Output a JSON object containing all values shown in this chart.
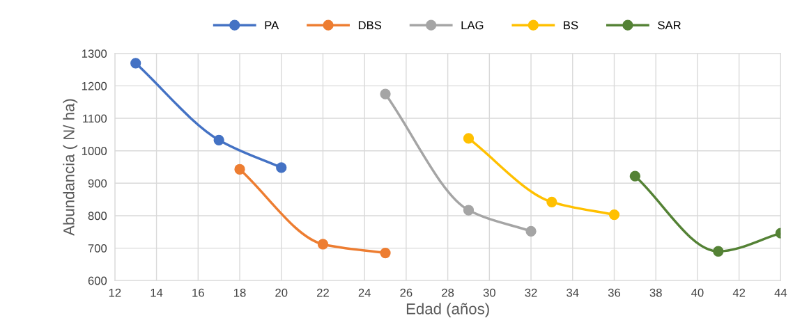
{
  "chart_data": {
    "type": "line",
    "xlabel": "Edad (años)",
    "ylabel": "Abundancia ( N/ ha)",
    "xlim": [
      12,
      44
    ],
    "xticks": [
      12,
      14,
      16,
      18,
      20,
      22,
      24,
      26,
      28,
      30,
      32,
      34,
      36,
      38,
      40,
      42,
      44
    ],
    "ylim": [
      600,
      1300
    ],
    "yticks": [
      600,
      700,
      800,
      900,
      1000,
      1100,
      1200,
      1300
    ],
    "grid": true,
    "legend": "top",
    "marker": "circle",
    "line_style": "solid",
    "series": [
      {
        "name": "PA",
        "color": "#4472c4",
        "x": [
          13,
          17,
          20
        ],
        "values": [
          1270,
          1033,
          948
        ]
      },
      {
        "name": "DBS",
        "color": "#ed7d31",
        "x": [
          18,
          22,
          25
        ],
        "values": [
          943,
          712,
          685
        ]
      },
      {
        "name": "LAG",
        "color": "#a5a5a5",
        "x": [
          25,
          29,
          32
        ],
        "values": [
          1175,
          817,
          752
        ]
      },
      {
        "name": "BS",
        "color": "#ffc000",
        "x": [
          29,
          33,
          36
        ],
        "values": [
          1038,
          842,
          803
        ]
      },
      {
        "name": "SAR",
        "color": "#548235",
        "x": [
          37,
          41,
          44
        ],
        "values": [
          922,
          690,
          746
        ]
      }
    ]
  }
}
